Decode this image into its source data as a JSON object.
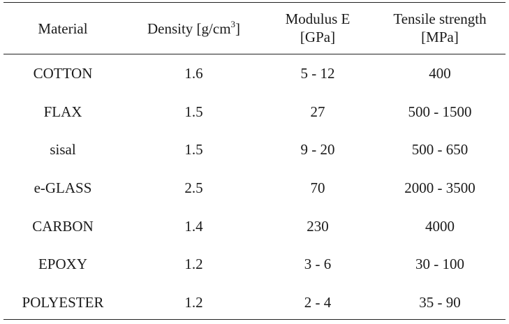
{
  "table": {
    "headers": {
      "material": "Material",
      "density_prefix": "Density [g/cm",
      "density_sup": "3",
      "density_suffix": "]",
      "modulus_line1": "Modulus E",
      "modulus_line2": "[GPa]",
      "tensile_line1": "Tensile strength",
      "tensile_line2": "[MPa]"
    },
    "rows": [
      {
        "material": "COTTON",
        "density": "1.6",
        "modulus": "5 - 12",
        "tensile": "400"
      },
      {
        "material": "FLAX",
        "density": "1.5",
        "modulus": "27",
        "tensile": "500 - 1500"
      },
      {
        "material": "sisal",
        "density": "1.5",
        "modulus": "9 - 20",
        "tensile": "500 - 650"
      },
      {
        "material": "e-GLASS",
        "density": "2.5",
        "modulus": "70",
        "tensile": "2000 - 3500"
      },
      {
        "material": "CARBON",
        "density": "1.4",
        "modulus": "230",
        "tensile": "4000"
      },
      {
        "material": "EPOXY",
        "density": "1.2",
        "modulus": "3 - 6",
        "tensile": "30 - 100"
      },
      {
        "material": "POLYESTER",
        "density": "1.2",
        "modulus": "2 - 4",
        "tensile": "35 - 90"
      }
    ]
  }
}
